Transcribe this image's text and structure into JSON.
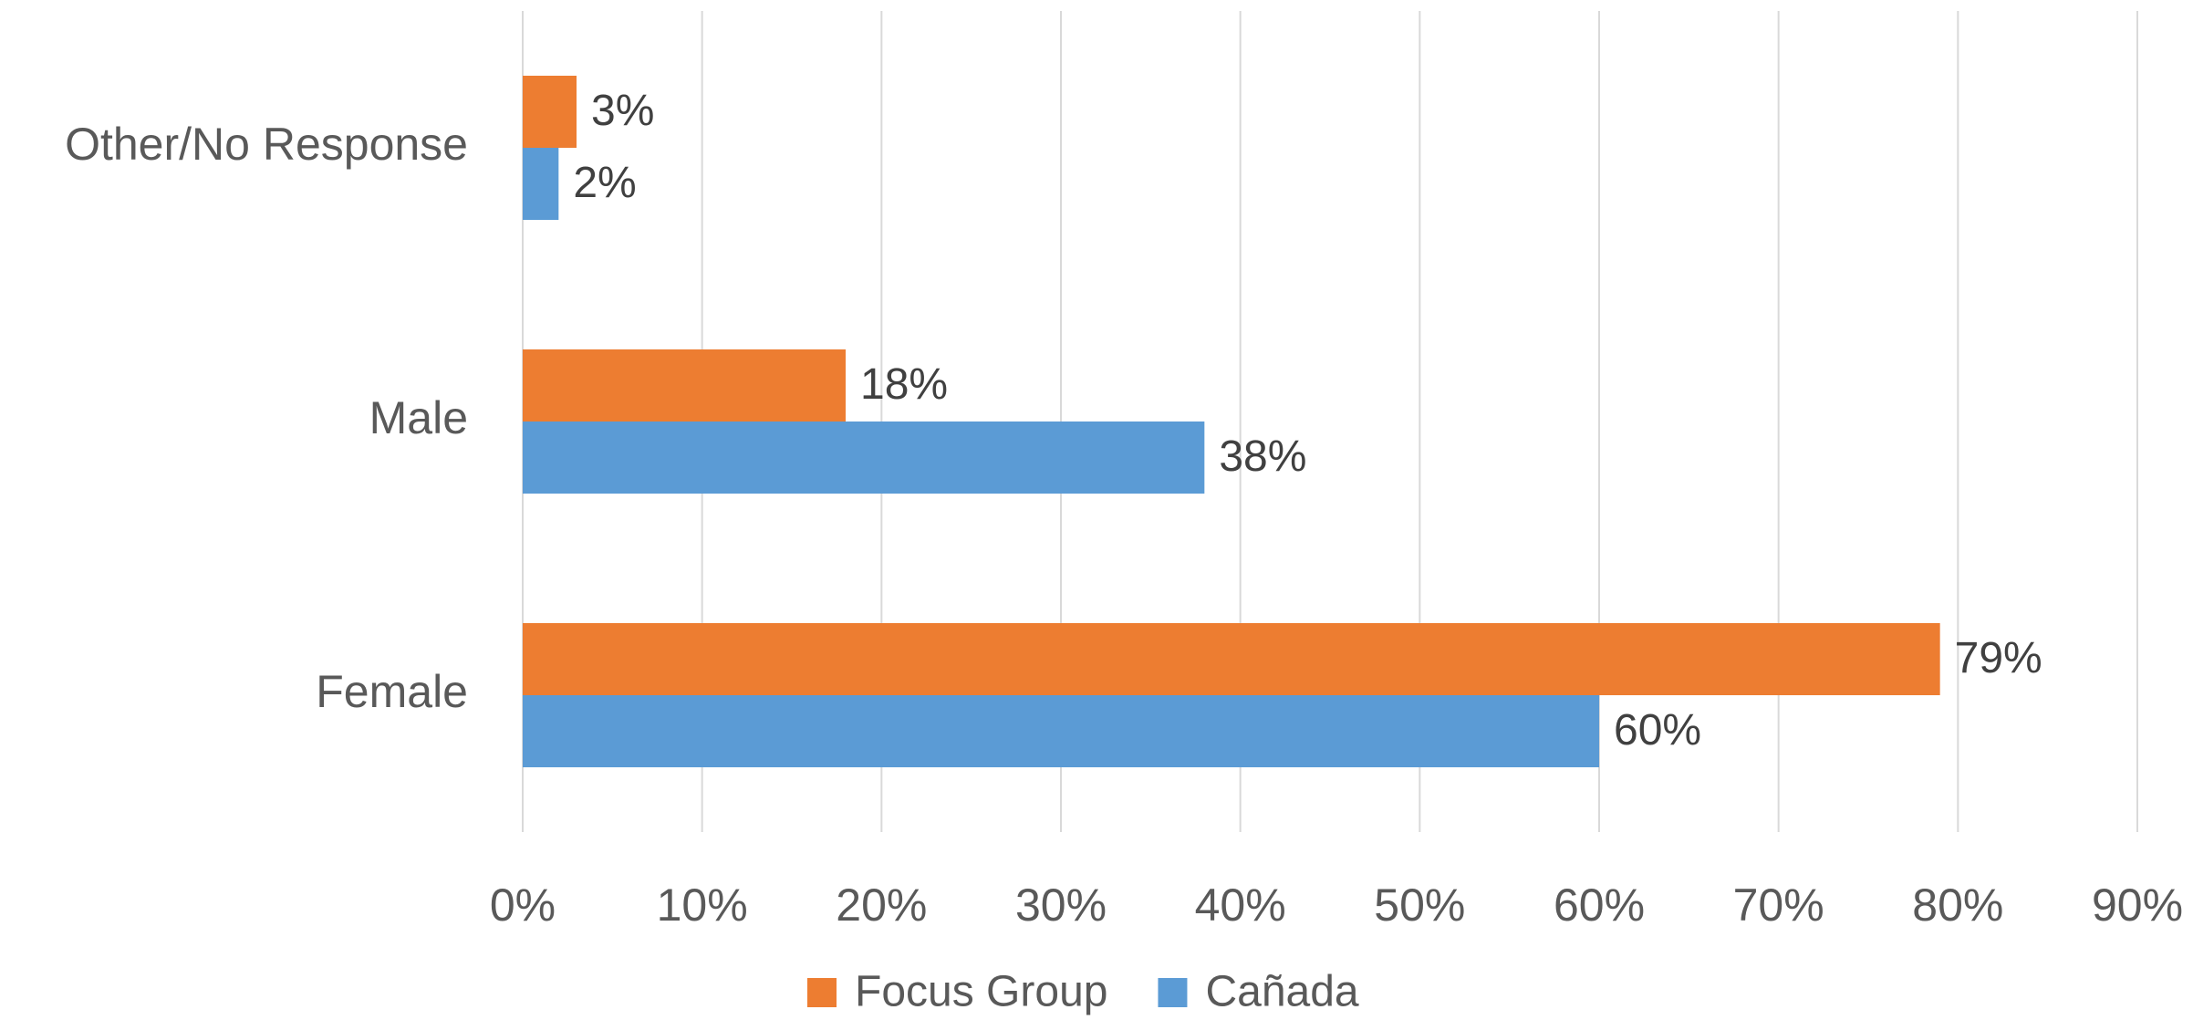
{
  "chart_data": {
    "type": "hbar",
    "categories": [
      "Other/No Response",
      "Male",
      "Female"
    ],
    "series": [
      {
        "name": "Focus Group",
        "color": "#ed7d31",
        "values": [
          3,
          18,
          79
        ],
        "value_labels": [
          "3%",
          "18%",
          "79%"
        ]
      },
      {
        "name": "Cañada",
        "color": "#5b9bd5",
        "values": [
          2,
          38,
          60
        ],
        "value_labels": [
          "2%",
          "38%",
          "60%"
        ]
      }
    ],
    "xlim": [
      0,
      90
    ],
    "xticks": [
      {
        "value": 0,
        "label": "0%"
      },
      {
        "value": 10,
        "label": "10%"
      },
      {
        "value": 20,
        "label": "20%"
      },
      {
        "value": 30,
        "label": "30%"
      },
      {
        "value": 40,
        "label": "40%"
      },
      {
        "value": 50,
        "label": "50%"
      },
      {
        "value": 60,
        "label": "60%"
      },
      {
        "value": 70,
        "label": "70%"
      },
      {
        "value": 80,
        "label": "80%"
      },
      {
        "value": 90,
        "label": "90%"
      }
    ],
    "grid": true
  }
}
